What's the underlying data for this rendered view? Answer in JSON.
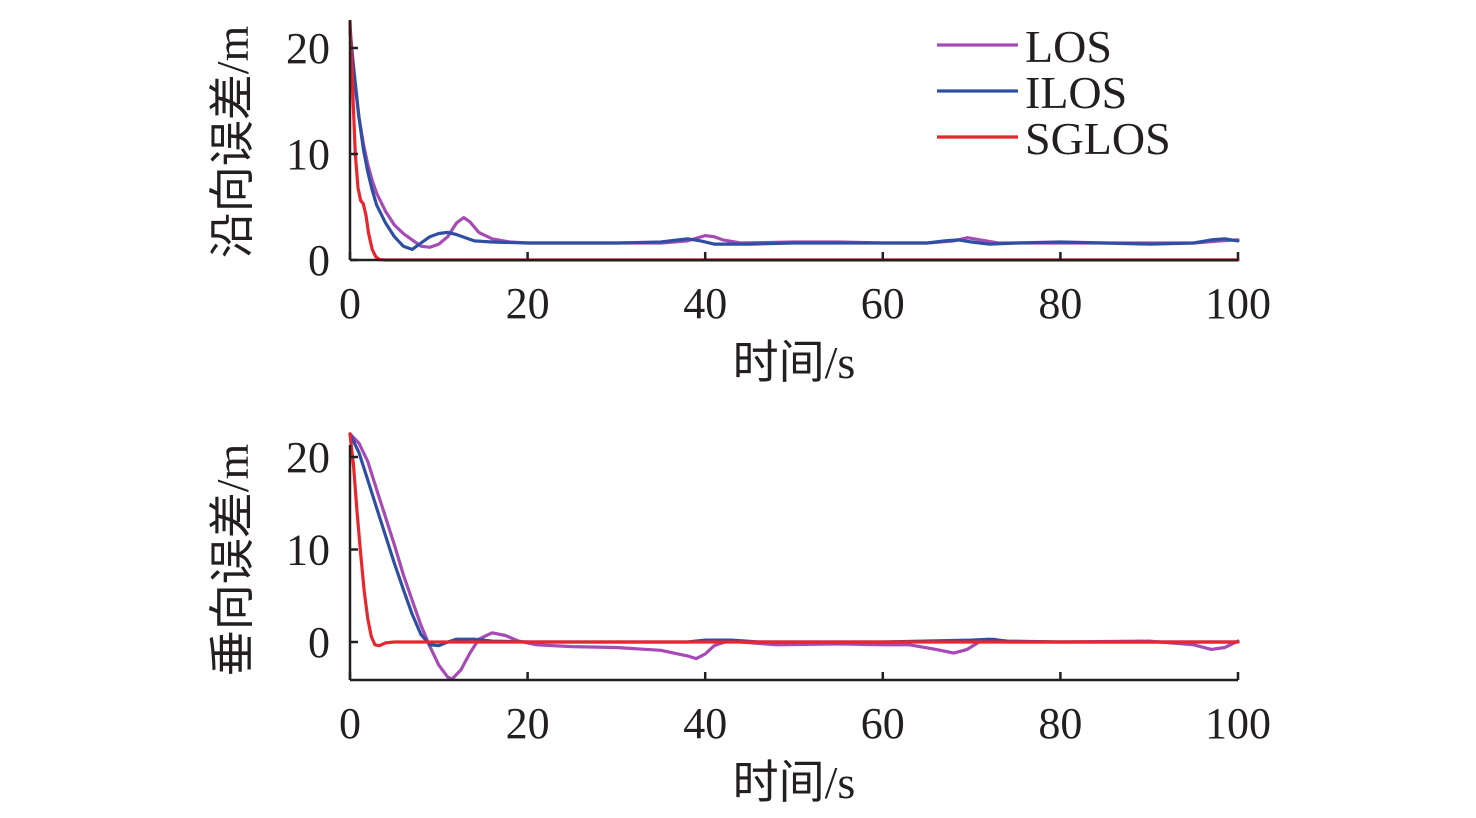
{
  "chart_data": [
    {
      "type": "line",
      "xlabel": "时间/s",
      "ylabel": "沿向误差/m",
      "xlim": [
        0,
        100
      ],
      "ylim": [
        0,
        22
      ],
      "xticks": [
        0,
        20,
        40,
        60,
        80,
        100
      ],
      "yticks": [
        0,
        10,
        20
      ],
      "grid": false,
      "legend_position": "top-right",
      "series": [
        {
          "name": "LOS",
          "color": "#a64ab5",
          "points": [
            [
              0,
              22
            ],
            [
              0.5,
              17
            ],
            [
              1,
              13.5
            ],
            [
              1.5,
              11
            ],
            [
              2,
              9
            ],
            [
              2.5,
              7.5
            ],
            [
              3,
              6.3
            ],
            [
              4,
              4.6
            ],
            [
              5,
              3.3
            ],
            [
              6,
              2.5
            ],
            [
              7,
              1.9
            ],
            [
              8,
              1.3
            ],
            [
              9,
              1.2
            ],
            [
              10,
              1.5
            ],
            [
              11,
              2.2
            ],
            [
              12,
              3.5
            ],
            [
              12.8,
              4
            ],
            [
              13.5,
              3.6
            ],
            [
              14.5,
              2.6
            ],
            [
              16,
              2
            ],
            [
              18,
              1.7
            ],
            [
              20,
              1.6
            ],
            [
              25,
              1.6
            ],
            [
              30,
              1.6
            ],
            [
              35,
              1.6
            ],
            [
              38,
              1.8
            ],
            [
              40,
              2.3
            ],
            [
              41,
              2.2
            ],
            [
              42,
              1.9
            ],
            [
              44,
              1.6
            ],
            [
              50,
              1.7
            ],
            [
              55,
              1.7
            ],
            [
              60,
              1.6
            ],
            [
              65,
              1.6
            ],
            [
              68,
              1.8
            ],
            [
              69.5,
              2.1
            ],
            [
              71,
              1.9
            ],
            [
              73,
              1.6
            ],
            [
              80,
              1.6
            ],
            [
              85,
              1.6
            ],
            [
              90,
              1.6
            ],
            [
              95,
              1.6
            ],
            [
              98,
              1.8
            ],
            [
              100,
              1.9
            ]
          ]
        },
        {
          "name": "ILOS",
          "color": "#2f4fa3",
          "points": [
            [
              0,
              21.5
            ],
            [
              0.5,
              17.5
            ],
            [
              1,
              13.5
            ],
            [
              1.5,
              10.5
            ],
            [
              2,
              8.3
            ],
            [
              2.5,
              6.6
            ],
            [
              3,
              5.2
            ],
            [
              4,
              3.5
            ],
            [
              5,
              2.2
            ],
            [
              6,
              1.3
            ],
            [
              7,
              1
            ],
            [
              8,
              1.6
            ],
            [
              9,
              2.2
            ],
            [
              10,
              2.5
            ],
            [
              11,
              2.6
            ],
            [
              12,
              2.4
            ],
            [
              13,
              2.1
            ],
            [
              14,
              1.8
            ],
            [
              16,
              1.7
            ],
            [
              20,
              1.6
            ],
            [
              25,
              1.6
            ],
            [
              30,
              1.6
            ],
            [
              35,
              1.7
            ],
            [
              37,
              1.9
            ],
            [
              38,
              2
            ],
            [
              39.5,
              1.8
            ],
            [
              41,
              1.5
            ],
            [
              45,
              1.5
            ],
            [
              50,
              1.6
            ],
            [
              55,
              1.6
            ],
            [
              60,
              1.6
            ],
            [
              65,
              1.6
            ],
            [
              67,
              1.8
            ],
            [
              68.5,
              1.9
            ],
            [
              70,
              1.7
            ],
            [
              72,
              1.5
            ],
            [
              75,
              1.6
            ],
            [
              80,
              1.7
            ],
            [
              85,
              1.6
            ],
            [
              90,
              1.5
            ],
            [
              95,
              1.6
            ],
            [
              97,
              1.9
            ],
            [
              98.5,
              2
            ],
            [
              100,
              1.8
            ]
          ]
        },
        {
          "name": "SGLOS",
          "color": "#e8262d",
          "points": [
            [
              0,
              22.5
            ],
            [
              0.3,
              16
            ],
            [
              0.6,
              10
            ],
            [
              0.9,
              6.8
            ],
            [
              1.2,
              5.6
            ],
            [
              1.5,
              5.3
            ],
            [
              1.8,
              4.2
            ],
            [
              2.1,
              2.5
            ],
            [
              2.5,
              1
            ],
            [
              2.9,
              0.3
            ],
            [
              3.3,
              0.05
            ],
            [
              4,
              0
            ],
            [
              10,
              0
            ],
            [
              20,
              0
            ],
            [
              40,
              0
            ],
            [
              60,
              0
            ],
            [
              80,
              0
            ],
            [
              100,
              0
            ]
          ]
        }
      ]
    },
    {
      "type": "line",
      "xlabel": "时间/s",
      "ylabel": "垂向误差/m",
      "xlim": [
        0,
        100
      ],
      "ylim": [
        -4,
        22
      ],
      "xticks": [
        0,
        20,
        40,
        60,
        80,
        100
      ],
      "yticks": [
        0,
        10,
        20
      ],
      "grid": false,
      "series": [
        {
          "name": "LOS",
          "color": "#a64ab5",
          "points": [
            [
              0,
              22.5
            ],
            [
              1,
              21.5
            ],
            [
              2,
              19.5
            ],
            [
              3,
              16.5
            ],
            [
              4,
              13.5
            ],
            [
              5,
              10.5
            ],
            [
              6,
              7.3
            ],
            [
              7,
              4.5
            ],
            [
              8,
              1.8
            ],
            [
              9,
              -0.5
            ],
            [
              10,
              -2.5
            ],
            [
              11,
              -3.8
            ],
            [
              11.5,
              -4
            ],
            [
              12.5,
              -3
            ],
            [
              13.5,
              -1.2
            ],
            [
              14.5,
              0.3
            ],
            [
              16,
              1
            ],
            [
              17.5,
              0.7
            ],
            [
              19,
              0.1
            ],
            [
              21,
              -0.3
            ],
            [
              25,
              -0.5
            ],
            [
              30,
              -0.6
            ],
            [
              35,
              -0.9
            ],
            [
              38,
              -1.5
            ],
            [
              39,
              -1.8
            ],
            [
              40,
              -1.3
            ],
            [
              41,
              -0.4
            ],
            [
              42.5,
              0.1
            ],
            [
              44,
              0
            ],
            [
              48,
              -0.3
            ],
            [
              55,
              -0.2
            ],
            [
              60,
              -0.3
            ],
            [
              63,
              -0.3
            ],
            [
              66,
              -0.8
            ],
            [
              68,
              -1.2
            ],
            [
              69.5,
              -0.8
            ],
            [
              71,
              0.1
            ],
            [
              72.5,
              0.3
            ],
            [
              74,
              0
            ],
            [
              80,
              0
            ],
            [
              90,
              0.1
            ],
            [
              95,
              -0.3
            ],
            [
              97,
              -0.8
            ],
            [
              98.5,
              -0.6
            ],
            [
              100,
              0.1
            ]
          ]
        },
        {
          "name": "ILOS",
          "color": "#2f4fa3",
          "points": [
            [
              0,
              22.5
            ],
            [
              1,
              20.5
            ],
            [
              2,
              17.5
            ],
            [
              3,
              14.5
            ],
            [
              4,
              11.5
            ],
            [
              5,
              8.5
            ],
            [
              6,
              5.7
            ],
            [
              7,
              3
            ],
            [
              8,
              0.8
            ],
            [
              9,
              -0.3
            ],
            [
              10,
              -0.4
            ],
            [
              11,
              0
            ],
            [
              12,
              0.3
            ],
            [
              14,
              0.3
            ],
            [
              16,
              0.1
            ],
            [
              20,
              0
            ],
            [
              30,
              0
            ],
            [
              38,
              0
            ],
            [
              40,
              0.2
            ],
            [
              43,
              0.2
            ],
            [
              46,
              0
            ],
            [
              60,
              0
            ],
            [
              70,
              0.2
            ],
            [
              72,
              0.3
            ],
            [
              74,
              0.1
            ],
            [
              80,
              0
            ],
            [
              100,
              0
            ]
          ]
        },
        {
          "name": "SGLOS",
          "color": "#e8262d",
          "points": [
            [
              0,
              22.5
            ],
            [
              0.4,
              19
            ],
            [
              0.8,
              14
            ],
            [
              1.2,
              9.5
            ],
            [
              1.6,
              5.5
            ],
            [
              2,
              2.5
            ],
            [
              2.4,
              0.6
            ],
            [
              2.8,
              -0.3
            ],
            [
              3.3,
              -0.4
            ],
            [
              4,
              -0.1
            ],
            [
              5,
              0
            ],
            [
              10,
              0
            ],
            [
              20,
              0
            ],
            [
              40,
              0
            ],
            [
              60,
              0
            ],
            [
              80,
              0
            ],
            [
              100,
              0
            ]
          ]
        }
      ]
    }
  ]
}
